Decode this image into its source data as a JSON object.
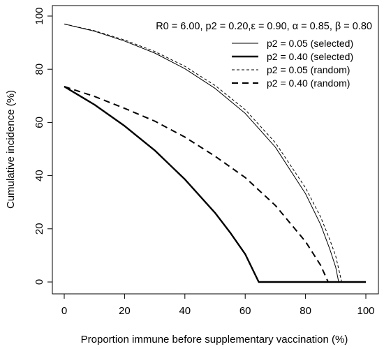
{
  "chart_data": {
    "type": "line",
    "title": "",
    "annotation": "R0 = 6.00, p2 = 0.20,ε = 0.90, α = 0.85, β = 0.80",
    "xlabel": "Proportion immune before supplementary vaccination (%)",
    "ylabel": "Cumulative incidence (%)",
    "xlim": [
      0,
      100
    ],
    "ylim": [
      0,
      100
    ],
    "x_ticks": [
      "0",
      "20",
      "40",
      "60",
      "80",
      "100"
    ],
    "y_ticks": [
      "0",
      "20",
      "40",
      "60",
      "80",
      "100"
    ],
    "grid": false,
    "legend_position": "top-right",
    "series": [
      {
        "name": "p2 = 0.05 (selected)",
        "style": "solid-thin",
        "color": "#000000",
        "points": [
          [
            0,
            97
          ],
          [
            10,
            94.3
          ],
          [
            20,
            90.6
          ],
          [
            30,
            86.1
          ],
          [
            40,
            80.2
          ],
          [
            50,
            72.8
          ],
          [
            60,
            63.4
          ],
          [
            70,
            50.7
          ],
          [
            80,
            33.2
          ],
          [
            85,
            21.6
          ],
          [
            88,
            12.5
          ],
          [
            90,
            5.6
          ],
          [
            91,
            0
          ],
          [
            100,
            0
          ]
        ]
      },
      {
        "name": "p2 = 0.40 (selected)",
        "style": "solid-thick",
        "color": "#000000",
        "points": [
          [
            0,
            73.5
          ],
          [
            10,
            66.7
          ],
          [
            20,
            58.7
          ],
          [
            30,
            49.5
          ],
          [
            40,
            38.6
          ],
          [
            50,
            26
          ],
          [
            55,
            18.6
          ],
          [
            60,
            10.5
          ],
          [
            64.5,
            0
          ],
          [
            100,
            0
          ]
        ]
      },
      {
        "name": "p2 = 0.05 (random)",
        "style": "dashed-thin",
        "color": "#000000",
        "points": [
          [
            0,
            97
          ],
          [
            10,
            94.5
          ],
          [
            20,
            91
          ],
          [
            30,
            86.7
          ],
          [
            40,
            81.1
          ],
          [
            50,
            73.9
          ],
          [
            60,
            64.8
          ],
          [
            70,
            52.4
          ],
          [
            80,
            35.4
          ],
          [
            85,
            24.5
          ],
          [
            88,
            16
          ],
          [
            90,
            9.8
          ],
          [
            92,
            0
          ],
          [
            100,
            0
          ]
        ]
      },
      {
        "name": "p2 = 0.40 (random)",
        "style": "dashed-thick",
        "color": "#000000",
        "points": [
          [
            0,
            73.5
          ],
          [
            10,
            69.8
          ],
          [
            20,
            65.3
          ],
          [
            30,
            60.5
          ],
          [
            40,
            54.5
          ],
          [
            50,
            47.3
          ],
          [
            60,
            39.3
          ],
          [
            70,
            28.8
          ],
          [
            80,
            15.2
          ],
          [
            85,
            6.3
          ],
          [
            87.5,
            0
          ],
          [
            100,
            0
          ]
        ]
      }
    ]
  }
}
